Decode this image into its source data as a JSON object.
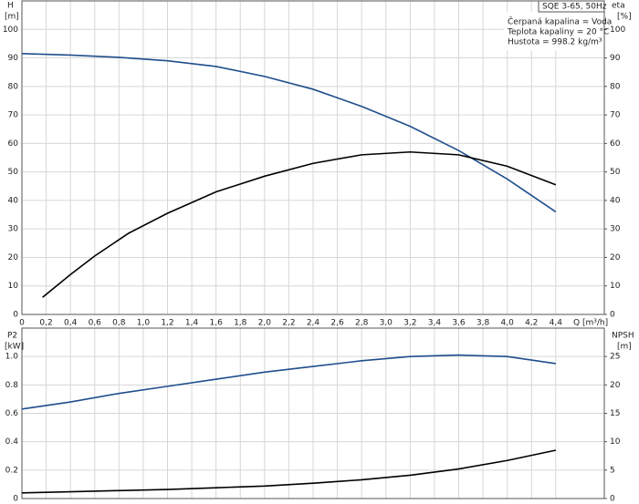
{
  "chart_data": [
    {
      "type": "line",
      "y_label": "H",
      "y_unit": "[m]",
      "y2_label": "eta",
      "y2_unit": "[%]",
      "x_label": "Q [m³/h]",
      "legend_title": "SQE 3-65, 50Hz",
      "legend_lines": [
        "Čerpaná kapalina = Voda",
        "Teplota kapaliny = 20 °C",
        "Hustota = 998.2 kg/m³"
      ],
      "xlim": [
        0,
        4.8
      ],
      "xticks": [
        0,
        {
          "value": 0.2,
          "label": "0,2"
        },
        {
          "value": 0.4,
          "label": "0,4"
        },
        {
          "value": 0.6,
          "label": "0,6"
        },
        {
          "value": 0.8,
          "label": "0,8"
        },
        {
          "value": 1,
          "label": "1,0"
        },
        {
          "value": 1.2,
          "label": "1,2"
        },
        {
          "value": 1.4,
          "label": "1,4"
        },
        {
          "value": 1.6,
          "label": "1,6"
        },
        {
          "value": 1.8,
          "label": "1,8"
        },
        {
          "value": 2,
          "label": "2,0"
        },
        {
          "value": 2.2,
          "label": "2,2"
        },
        {
          "value": 2.4,
          "label": "2,4"
        },
        {
          "value": 2.6,
          "label": "2,6"
        },
        {
          "value": 2.8,
          "label": "2,8"
        },
        {
          "value": 3,
          "label": "3,0"
        },
        {
          "value": 3.2,
          "label": "3,2"
        },
        {
          "value": 3.4,
          "label": "3,4"
        },
        {
          "value": 3.6,
          "label": "3,6"
        },
        {
          "value": 3.8,
          "label": "3,8"
        },
        {
          "value": 4,
          "label": "4,0"
        },
        {
          "value": 4.2,
          "label": "4,2"
        },
        {
          "value": 4.4,
          "label": "4,4"
        }
      ],
      "ylim": [
        0,
        110
      ],
      "yticks": [
        0,
        10,
        20,
        30,
        40,
        50,
        60,
        70,
        80,
        90,
        100
      ],
      "y2lim": [
        0,
        110
      ],
      "y2ticks": [
        0,
        10,
        20,
        30,
        40,
        50,
        60,
        70,
        80,
        90,
        100
      ],
      "grid": true,
      "series": [
        {
          "name": "H",
          "color": "#1f4e8c",
          "x": [
            0,
            0.4,
            0.8,
            1.2,
            1.6,
            2.0,
            2.4,
            2.8,
            3.2,
            3.6,
            4.0,
            4.4
          ],
          "values": [
            91.5,
            91,
            90.2,
            89,
            87,
            83.5,
            79,
            73,
            66,
            57.5,
            47.5,
            36
          ]
        },
        {
          "name": "eta",
          "color": "#000000",
          "axis": "y2",
          "x": [
            0.17,
            0.4,
            0.6,
            0.88,
            1.2,
            1.6,
            2.0,
            2.4,
            2.8,
            3.2,
            3.6,
            4.0,
            4.4
          ],
          "values": [
            6,
            14,
            20.5,
            28.5,
            35.5,
            43,
            48.5,
            53,
            56,
            57,
            56,
            52,
            45.5
          ]
        }
      ]
    },
    {
      "type": "line",
      "y_label": "P2",
      "y_unit": "[kW]",
      "y2_label": "NPSH",
      "y2_unit": "[m]",
      "xlim": [
        0,
        4.8
      ],
      "xticks": [
        0,
        0.2,
        0.4,
        0.6,
        0.8,
        1,
        1.2,
        1.4,
        1.6,
        1.8,
        2,
        2.2,
        2.4,
        2.6,
        2.8,
        3,
        3.2,
        3.4,
        3.6,
        3.8,
        4,
        4.2,
        4.4
      ],
      "ylim": [
        0,
        1.2
      ],
      "yticks": [
        0,
        0.2,
        0.4,
        0.6,
        0.8,
        {
          "value": 1,
          "label": "1.0"
        }
      ],
      "y2lim": [
        0,
        30
      ],
      "y2ticks": [
        0,
        5,
        10,
        15,
        20,
        25
      ],
      "grid": true,
      "series": [
        {
          "name": "P2",
          "color": "#1f4e8c",
          "x": [
            0,
            0.4,
            0.8,
            1.2,
            1.6,
            2.0,
            2.4,
            2.8,
            3.2,
            3.6,
            4.0,
            4.4
          ],
          "values": [
            0.63,
            0.68,
            0.74,
            0.79,
            0.84,
            0.89,
            0.93,
            0.97,
            1.0,
            1.01,
            1.0,
            0.95
          ]
        },
        {
          "name": "NPSH",
          "color": "#000000",
          "axis": "y2",
          "x": [
            0,
            0.4,
            0.8,
            1.2,
            1.6,
            2.0,
            2.4,
            2.8,
            3.2,
            3.6,
            4.0,
            4.4
          ],
          "values": [
            1.0,
            1.2,
            1.4,
            1.6,
            1.9,
            2.2,
            2.7,
            3.3,
            4.1,
            5.2,
            6.7,
            8.5
          ]
        }
      ]
    }
  ]
}
